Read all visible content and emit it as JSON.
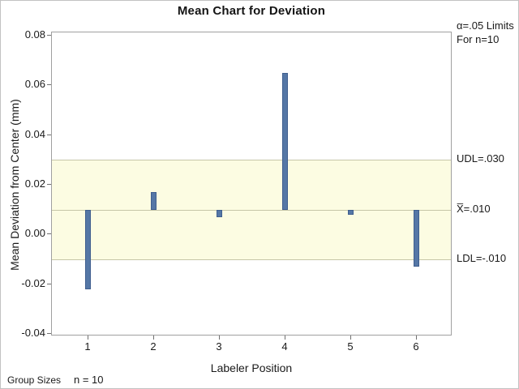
{
  "title": "Mean Chart for Deviation",
  "annotations": {
    "alpha_line1": "α=.05 Limits",
    "alpha_line2": "For n=10",
    "udl_label": "UDL=.030",
    "xbar_label": "X̅=.010",
    "ldl_label": "LDL=-.010"
  },
  "footer": {
    "group_sizes_label": "Group Sizes",
    "group_size_value": "n = 10"
  },
  "colors": {
    "bar_fill": "#5577a6",
    "bar_border": "#3f5e8e",
    "band_fill": "#fcfce2",
    "band_line": "#c6c6a8",
    "frame_border": "#a0a0a0",
    "title_text": "#141414"
  },
  "chart_data": {
    "type": "bar",
    "title": "Mean Chart for Deviation",
    "xlabel": "Labeler Position",
    "ylabel": "Mean Deviation from Center (mm)",
    "categories": [
      "1",
      "2",
      "3",
      "4",
      "5",
      "6"
    ],
    "values": [
      -0.022,
      0.017,
      0.007,
      0.065,
      0.008,
      -0.013
    ],
    "series_note": "needle bars drawn from center line X̅ to each subgroup mean",
    "center_mean": 0.01,
    "udl": 0.03,
    "ldl": -0.01,
    "alpha": 0.05,
    "subgroup_n": 10,
    "ytick_labels": [
      "0.08",
      "0.06",
      "0.04",
      "0.02",
      "0.00",
      "-0.02",
      "-0.04"
    ],
    "ytick_values": [
      0.08,
      0.06,
      0.04,
      0.02,
      0.0,
      -0.02,
      -0.04
    ],
    "ylim": [
      -0.0413,
      0.0813
    ],
    "grid": false,
    "legend": "none",
    "band": "shaded control band between LDL and UDL"
  }
}
